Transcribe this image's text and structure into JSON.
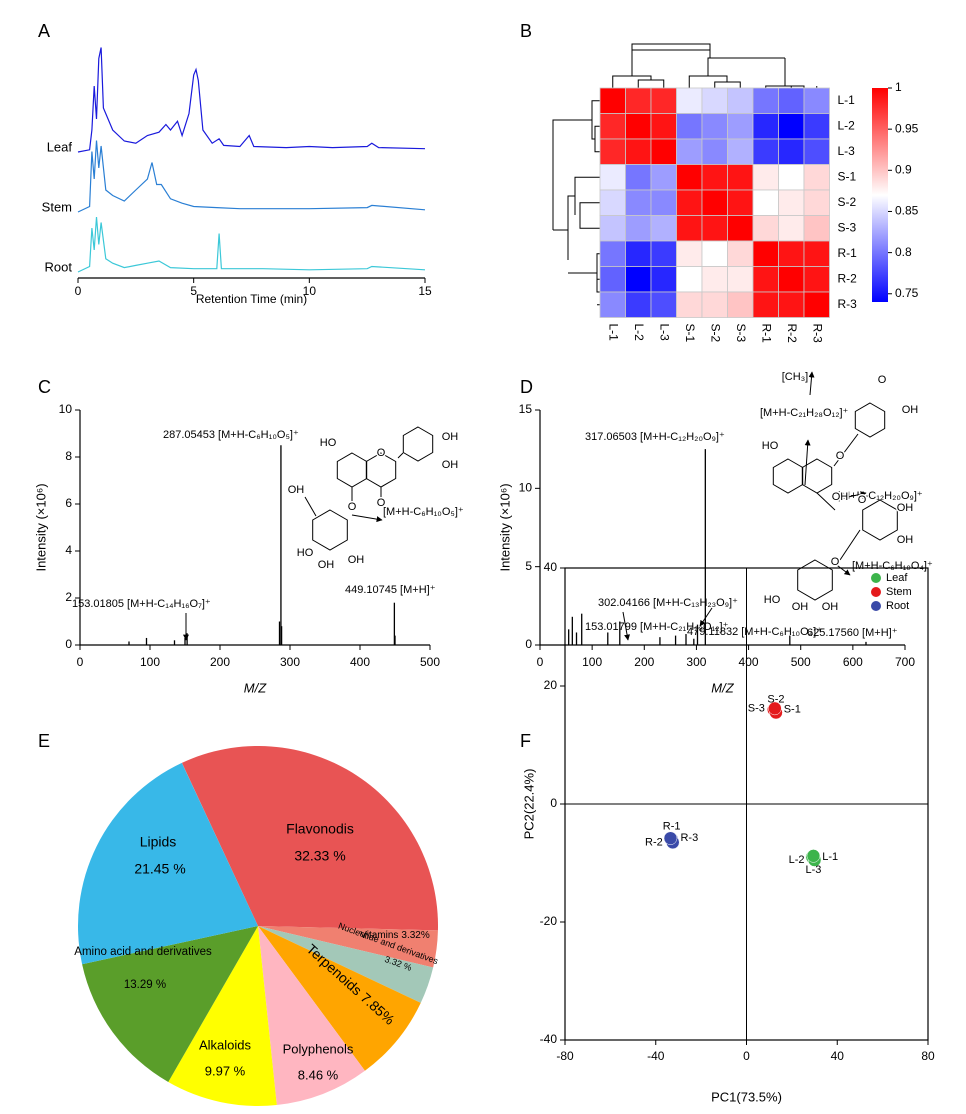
{
  "chart_data": [
    {
      "panel_label": "A",
      "type": "line",
      "xlabel": "Retention Time (min)",
      "xlim": [
        0,
        15
      ],
      "xticks": [
        0,
        5,
        10,
        15
      ],
      "series": [
        {
          "name": "Leaf",
          "color": "#1a1adc",
          "x": [
            0,
            0.5,
            0.6,
            0.7,
            0.8,
            0.9,
            1.0,
            1.1,
            1.5,
            2.0,
            2.5,
            3.0,
            3.5,
            3.8,
            4.0,
            4.3,
            4.5,
            4.8,
            5.0,
            5.1,
            5.2,
            5.4,
            5.8,
            6.1,
            6.3,
            7.0,
            7.4,
            7.6,
            9,
            10,
            11,
            12.5,
            12.7,
            13,
            15
          ],
          "values": [
            0,
            2,
            20,
            60,
            30,
            85,
            95,
            40,
            20,
            10,
            8,
            15,
            18,
            25,
            20,
            28,
            15,
            35,
            70,
            75,
            65,
            20,
            8,
            12,
            6,
            5,
            15,
            5,
            4,
            5,
            4,
            5,
            8,
            4,
            3
          ]
        },
        {
          "name": "Stem",
          "color": "#2a7fd4",
          "x": [
            0,
            0.5,
            0.6,
            0.7,
            0.8,
            0.9,
            1.0,
            1.2,
            1.5,
            2.0,
            2.5,
            3.0,
            3.2,
            3.4,
            3.6,
            4.0,
            4.5,
            5.0,
            6.0,
            7.0,
            8.0,
            10,
            12.5,
            12.7,
            15
          ],
          "values": [
            0,
            5,
            55,
            30,
            65,
            40,
            60,
            20,
            15,
            10,
            20,
            30,
            45,
            25,
            25,
            12,
            8,
            5,
            4,
            3,
            3,
            3,
            4,
            6,
            2
          ]
        },
        {
          "name": "Root",
          "color": "#3cc8d8",
          "x": [
            0,
            0.5,
            0.6,
            0.7,
            0.8,
            0.9,
            1.0,
            1.2,
            1.5,
            2.0,
            2.5,
            3.0,
            3.5,
            4.0,
            5.0,
            6.0,
            6.1,
            6.2,
            7.0,
            8.0,
            10,
            12.5,
            12.7,
            15
          ],
          "values": [
            0,
            5,
            40,
            20,
            50,
            25,
            45,
            12,
            8,
            4,
            6,
            8,
            10,
            4,
            3,
            3,
            35,
            3,
            3,
            3,
            2,
            3,
            5,
            2
          ]
        }
      ]
    },
    {
      "panel_label": "B",
      "type": "heatmap",
      "rows": [
        "L-1",
        "L-2",
        "L-3",
        "S-1",
        "S-2",
        "S-3",
        "R-1",
        "R-2",
        "R-3"
      ],
      "columns": [
        "L-1",
        "L-2",
        "L-3",
        "S-1",
        "S-2",
        "S-3",
        "R-1",
        "R-2",
        "R-3"
      ],
      "values": [
        [
          1,
          0.98,
          0.98,
          0.86,
          0.85,
          0.84,
          0.8,
          0.79,
          0.81
        ],
        [
          0.98,
          1,
          0.99,
          0.8,
          0.81,
          0.82,
          0.76,
          0.74,
          0.77
        ],
        [
          0.98,
          0.99,
          1,
          0.82,
          0.81,
          0.83,
          0.77,
          0.76,
          0.78
        ],
        [
          0.86,
          0.8,
          0.82,
          1,
          0.99,
          0.99,
          0.88,
          0.87,
          0.89
        ],
        [
          0.85,
          0.81,
          0.81,
          0.99,
          1,
          0.99,
          0.87,
          0.88,
          0.89
        ],
        [
          0.84,
          0.82,
          0.83,
          0.99,
          0.99,
          1,
          0.89,
          0.88,
          0.9
        ],
        [
          0.8,
          0.76,
          0.77,
          0.88,
          0.87,
          0.89,
          1,
          0.99,
          0.99
        ],
        [
          0.79,
          0.74,
          0.76,
          0.87,
          0.88,
          0.88,
          0.99,
          1,
          0.99
        ],
        [
          0.81,
          0.77,
          0.78,
          0.89,
          0.89,
          0.9,
          0.99,
          0.99,
          1
        ]
      ],
      "zlim": [
        0.74,
        1
      ],
      "zticks": [
        0.75,
        0.8,
        0.85,
        0.9,
        0.95,
        1
      ],
      "colormap": [
        "#0000ff",
        "#ffffff",
        "#ff0000"
      ]
    },
    {
      "panel_label": "C",
      "type": "stem",
      "xlabel": "M/Z",
      "ylabel": "Intensity (×10⁶)",
      "xlim": [
        0,
        500
      ],
      "ylim": [
        0,
        10
      ],
      "xticks": [
        0,
        100,
        200,
        300,
        400,
        500
      ],
      "yticks": [
        0,
        2,
        4,
        6,
        8,
        10
      ],
      "color": "#000000",
      "x": [
        70,
        95,
        135,
        150,
        153.01805,
        285,
        287.05453,
        288,
        449.10745,
        450
      ],
      "values": [
        0.15,
        0.3,
        0.2,
        0.3,
        0.5,
        1.0,
        8.5,
        0.8,
        1.8,
        0.4
      ],
      "annotations": [
        "287.05453 [M+H-C₆H₁₀O₅]⁺",
        "153.01805 [M+H-C₁₄H₁₆O₇]⁺",
        "449.10745 [M+H]⁺",
        "[M+H-C₆H₁₀O₅]⁺"
      ],
      "structure_labels": [
        "HO",
        "OH",
        "OH",
        "O",
        "O",
        "O",
        "OH",
        "HO",
        "OH",
        "OH"
      ]
    },
    {
      "panel_label": "D",
      "type": "stem",
      "xlabel": "M/Z",
      "ylabel": "Intensity (×10⁶)",
      "xlim": [
        0,
        700
      ],
      "ylim": [
        0,
        15
      ],
      "xticks": [
        0,
        100,
        200,
        300,
        400,
        500,
        600,
        700
      ],
      "yticks": [
        0,
        5,
        10,
        15
      ],
      "color": "#000000",
      "x": [
        55,
        62,
        70,
        80,
        130,
        153.01799,
        230,
        260,
        280,
        295,
        302.04166,
        317.06503,
        479.11832,
        625.1756
      ],
      "values": [
        1.0,
        1.8,
        0.8,
        2.0,
        0.8,
        1.5,
        0.5,
        0.6,
        0.7,
        0.4,
        1.3,
        12.5,
        0.6,
        0.2
      ],
      "annotations": [
        "317.06503 [M+H-C₁₂H₂₀O₉]⁺",
        "302.04166 [M+H-C₁₃H₂₃O₉]⁺",
        "153.01799 [M+H-C₂₁H₂₈O₁₂]⁺",
        "479.11832 [M+H-C₆H₁₀O₄]⁺",
        "625.17560 [M+H]⁺",
        "[M+H-C₂₁H₂₈O₁₂]⁺",
        "[M+H-C₁₂H₂₀O₉]⁺",
        "[M+H-C₆H₁₀O₄]⁺"
      ],
      "structure_labels": [
        "[CH₃]",
        "O",
        "OH",
        "HO",
        "O",
        "OH",
        "O",
        "OH",
        "OH",
        "O",
        "HO",
        "OH",
        "OH"
      ]
    },
    {
      "panel_label": "E",
      "type": "pie",
      "categories": [
        "Flavonodis",
        "Vitamins",
        "Nucleotide and derivatives",
        "Terpenoids",
        "Polyphenols",
        "Alkaloids",
        "Amino acid and derivatives",
        "Lipids"
      ],
      "values": [
        32.33,
        3.32,
        3.32,
        7.85,
        8.46,
        9.97,
        13.29,
        21.45
      ],
      "value_labels": [
        "32.33 %",
        "3.32%",
        "3.32 %",
        "7.85%",
        "8.46 %",
        "9.97 %",
        "13.29 %",
        "21.45 %"
      ],
      "colors": [
        "#e85454",
        "#f08070",
        "#a3c8b8",
        "#ffa500",
        "#ffb6c1",
        "#ffff00",
        "#5a9e2a",
        "#38b8e8"
      ]
    },
    {
      "panel_label": "F",
      "type": "scatter",
      "xlabel": "PC1(73.5%)",
      "ylabel": "PC2(22.4%)",
      "xlim": [
        -80,
        80
      ],
      "ylim": [
        -40,
        40
      ],
      "xticks": [
        -80,
        -40,
        0,
        40,
        80
      ],
      "yticks": [
        -40,
        -20,
        0,
        20,
        40
      ],
      "legend": "top-right",
      "series": [
        {
          "name": "Leaf",
          "color": "#3cb44b",
          "x": [
            29,
            30,
            29.5
          ],
          "values": [
            -9,
            -9.5,
            -8.8
          ],
          "labels": [
            "L-1",
            "L-2",
            "L-3"
          ]
        },
        {
          "name": "Stem",
          "color": "#e41a1c",
          "x": [
            12,
            13,
            12.5
          ],
          "values": [
            16,
            15.5,
            16.2
          ],
          "labels": [
            "S-1",
            "S-2",
            "S-3"
          ]
        },
        {
          "name": "Root",
          "color": "#3a4aa8",
          "x": [
            -33,
            -32.5,
            -33.5
          ],
          "values": [
            -6,
            -6.5,
            -5.8
          ],
          "labels": [
            "R-1",
            "R-2",
            "R-3"
          ]
        }
      ]
    }
  ]
}
